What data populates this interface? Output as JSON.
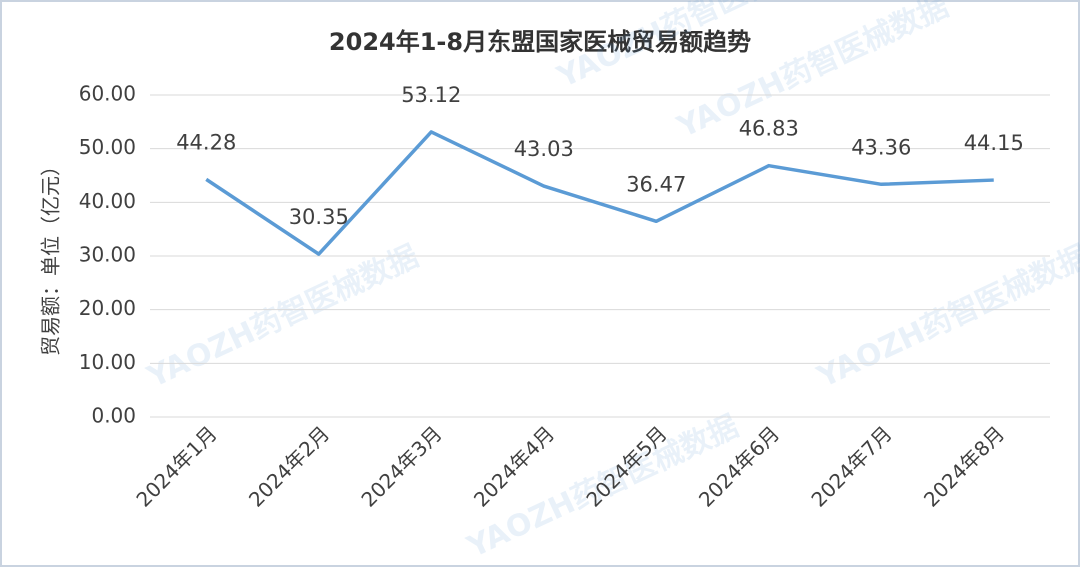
{
  "chart_data": {
    "type": "line",
    "title": "2024年1-8月东盟国家医械贸易额趋势",
    "y_label": "贸易额：单位（亿元）",
    "watermark": "YAOZH药智医械数据",
    "categories": [
      "2024年1月",
      "2024年2月",
      "2024年3月",
      "2024年4月",
      "2024年5月",
      "2024年6月",
      "2024年7月",
      "2024年8月"
    ],
    "series": [
      {
        "name": "贸易额",
        "color": "#5b9bd5",
        "values": [
          44.28,
          30.35,
          53.12,
          43.03,
          36.47,
          46.83,
          43.36,
          44.15
        ]
      }
    ],
    "ylim": [
      0,
      60
    ],
    "yticks": [
      {
        "value": 0,
        "label": "0.00"
      },
      {
        "value": 10,
        "label": "10.00"
      },
      {
        "value": 20,
        "label": "20.00"
      },
      {
        "value": 30,
        "label": "30.00"
      },
      {
        "value": 40,
        "label": "40.00"
      },
      {
        "value": 50,
        "label": "50.00"
      },
      {
        "value": 60,
        "label": "60.00"
      }
    ],
    "grid": true
  }
}
